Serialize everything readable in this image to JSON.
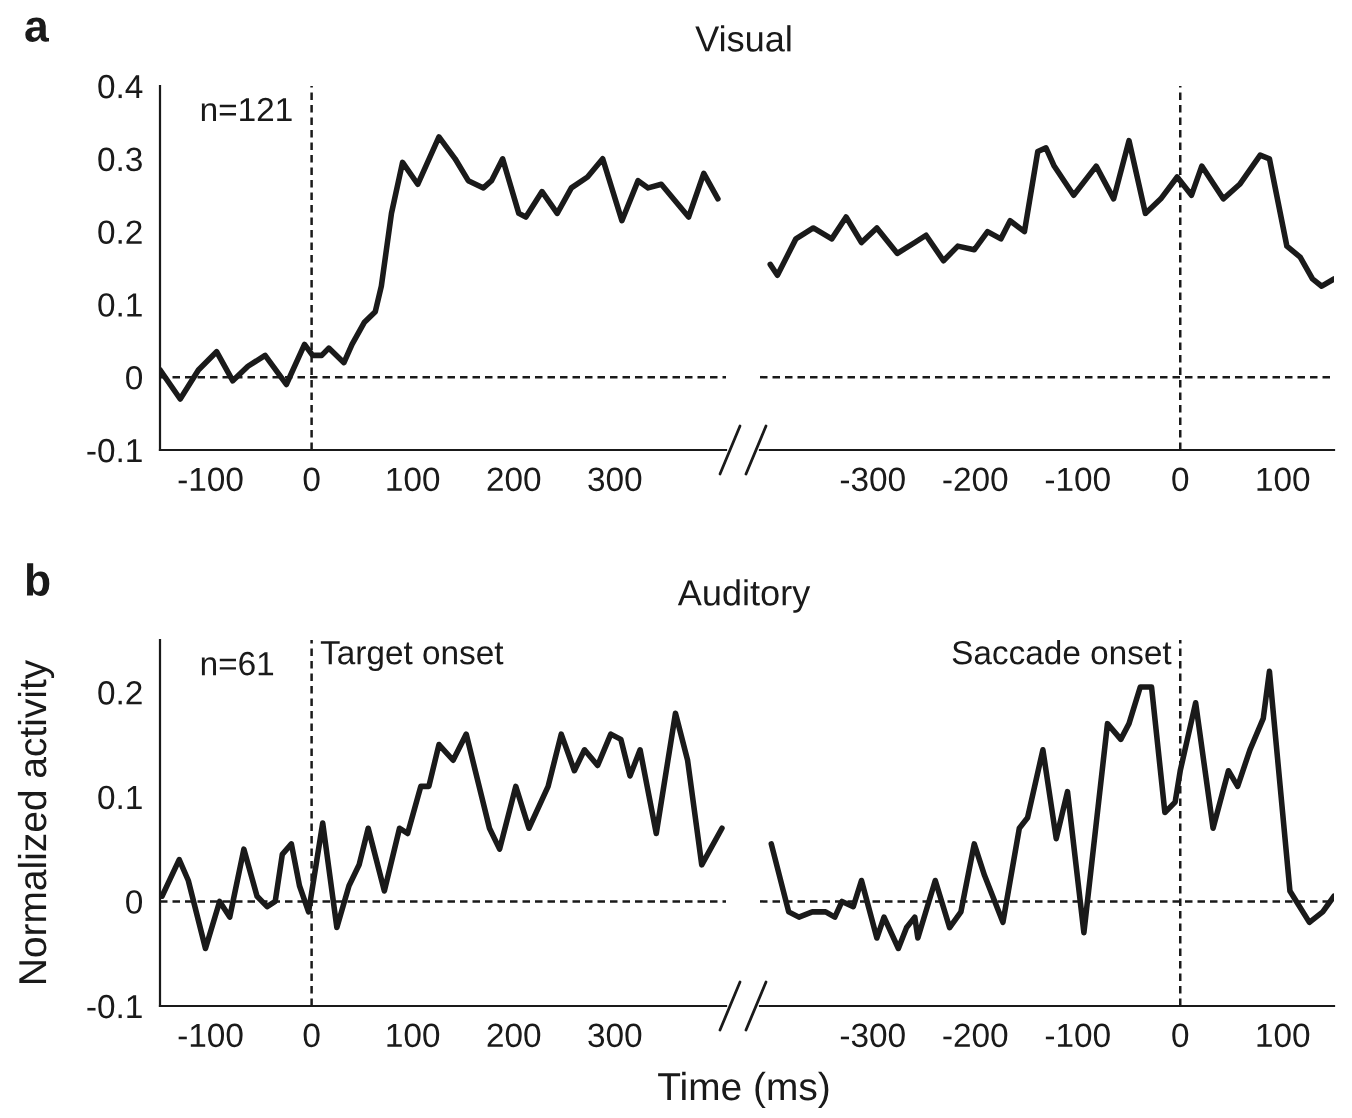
{
  "chart_data": [
    {
      "type": "line",
      "title": "Visual",
      "annotations": [
        "a",
        "n=121"
      ],
      "xlim": [
        -150,
        410
      ],
      "xticks": [
        -100,
        0,
        100,
        200,
        300
      ],
      "ylim": [
        -0.1,
        0.4
      ],
      "yticks": [
        -0.1,
        0,
        0.1,
        0.2,
        0.3,
        0.4
      ],
      "grid": false,
      "legend": false,
      "line_style": "solid",
      "ref_lines": [
        {
          "axis": "y",
          "value": 0,
          "line_style": "dashed"
        },
        {
          "axis": "x",
          "value": 0,
          "line_style": "dashed"
        }
      ],
      "series": [
        {
          "color": "#1a1a1a",
          "x": [
            -150,
            -130,
            -112,
            -94,
            -78,
            -63,
            -46,
            -25,
            -7,
            1,
            10,
            17,
            32,
            40,
            52,
            63,
            69,
            79,
            90,
            105,
            126,
            142,
            155,
            170,
            178,
            189,
            205,
            212,
            228,
            243,
            257,
            273,
            288,
            307,
            323,
            333,
            346,
            373,
            388,
            402
          ],
          "values": [
            0.01,
            -0.03,
            0.01,
            0.035,
            -0.005,
            0.015,
            0.03,
            -0.01,
            0.045,
            0.03,
            0.03,
            0.04,
            0.02,
            0.045,
            0.075,
            0.09,
            0.125,
            0.225,
            0.295,
            0.265,
            0.33,
            0.3,
            0.27,
            0.26,
            0.27,
            0.3,
            0.225,
            0.22,
            0.255,
            0.225,
            0.26,
            0.275,
            0.3,
            0.215,
            0.27,
            0.26,
            0.265,
            0.22,
            0.28,
            0.245
          ]
        }
      ]
    },
    {
      "type": "line",
      "xlim": [
        -410,
        150
      ],
      "xticks": [
        -300,
        -200,
        -100,
        0,
        100
      ],
      "ylim": [
        -0.1,
        0.4
      ],
      "tick_labels": "x",
      "grid": false,
      "legend": false,
      "line_style": "solid",
      "ref_lines": [
        {
          "axis": "y",
          "value": 0,
          "line_style": "dashed"
        },
        {
          "axis": "x",
          "value": 0,
          "line_style": "dashed"
        }
      ],
      "series": [
        {
          "color": "#1a1a1a",
          "x": [
            -400,
            -393,
            -375,
            -358,
            -340,
            -326,
            -311,
            -296,
            -276,
            -259,
            -248,
            -231,
            -217,
            -201,
            -188,
            -175,
            -166,
            -152,
            -139,
            -131,
            -123,
            -104,
            -82,
            -65,
            -50,
            -34,
            -19,
            -3,
            11,
            21,
            42,
            58,
            78,
            87,
            104,
            117,
            129,
            138,
            150
          ],
          "values": [
            0.155,
            0.14,
            0.19,
            0.205,
            0.19,
            0.22,
            0.185,
            0.205,
            0.17,
            0.185,
            0.195,
            0.16,
            0.18,
            0.175,
            0.2,
            0.19,
            0.215,
            0.2,
            0.31,
            0.315,
            0.29,
            0.25,
            0.29,
            0.245,
            0.325,
            0.225,
            0.245,
            0.275,
            0.25,
            0.29,
            0.245,
            0.265,
            0.305,
            0.3,
            0.18,
            0.165,
            0.135,
            0.125,
            0.135
          ]
        }
      ]
    },
    {
      "type": "line",
      "title": "Auditory",
      "ylabel": "Normalized activity",
      "annotations": [
        "b",
        "n=61"
      ],
      "xlim": [
        -150,
        410
      ],
      "xticks": [
        -100,
        0,
        100,
        200,
        300
      ],
      "ylim": [
        -0.1,
        0.25
      ],
      "yticks": [
        -0.1,
        0,
        0.1,
        0.2
      ],
      "grid": false,
      "legend": false,
      "line_style": "solid",
      "ref_lines": [
        {
          "axis": "y",
          "value": 0,
          "line_style": "dashed"
        },
        {
          "axis": "x",
          "value": 0,
          "label": "Target onset",
          "line_style": "dashed"
        }
      ],
      "series": [
        {
          "color": "#1a1a1a",
          "x": [
            -148,
            -131,
            -122,
            -105,
            -91,
            -81,
            -67,
            -54,
            -44,
            -36,
            -29,
            -20,
            -12,
            -3,
            11,
            25,
            37,
            47,
            56,
            72,
            87,
            95,
            108,
            116,
            126,
            140,
            153,
            176,
            186,
            202,
            215,
            234,
            247,
            260,
            270,
            283,
            296,
            306,
            315,
            325,
            341,
            360,
            372,
            386,
            406
          ],
          "values": [
            0.005,
            0.04,
            0.02,
            -0.045,
            0.0,
            -0.015,
            0.05,
            0.005,
            -0.005,
            0.0,
            0.045,
            0.055,
            0.015,
            -0.01,
            0.075,
            -0.025,
            0.015,
            0.035,
            0.07,
            0.01,
            0.07,
            0.065,
            0.11,
            0.11,
            0.15,
            0.135,
            0.16,
            0.07,
            0.05,
            0.11,
            0.07,
            0.11,
            0.16,
            0.125,
            0.145,
            0.13,
            0.16,
            0.155,
            0.12,
            0.145,
            0.065,
            0.18,
            0.135,
            0.035,
            0.07
          ]
        }
      ]
    },
    {
      "type": "line",
      "xlabel": "Time (ms)",
      "xlim": [
        -410,
        150
      ],
      "xticks": [
        -300,
        -200,
        -100,
        0,
        100
      ],
      "ylim": [
        -0.1,
        0.25
      ],
      "tick_labels": "x",
      "grid": false,
      "legend": false,
      "line_style": "solid",
      "ref_lines": [
        {
          "axis": "y",
          "value": 0,
          "line_style": "dashed"
        },
        {
          "axis": "x",
          "value": 0,
          "label": "Saccade onset",
          "line_style": "dashed"
        }
      ],
      "series": [
        {
          "color": "#1a1a1a",
          "x": [
            -399,
            -382,
            -372,
            -359,
            -346,
            -337,
            -330,
            -319,
            -311,
            -296,
            -289,
            -275,
            -267,
            -259,
            -256,
            -239,
            -225,
            -214,
            -201,
            -191,
            -173,
            -157,
            -149,
            -134,
            -121,
            -110,
            -94,
            -71,
            -58,
            -50,
            -39,
            -28,
            -15,
            -5,
            0,
            15,
            32,
            47,
            56,
            68,
            81,
            87,
            107,
            126,
            139,
            150
          ],
          "values": [
            0.055,
            -0.01,
            -0.015,
            -0.01,
            -0.01,
            -0.015,
            0.0,
            -0.005,
            0.02,
            -0.035,
            -0.015,
            -0.045,
            -0.025,
            -0.015,
            -0.035,
            0.02,
            -0.025,
            -0.01,
            0.055,
            0.025,
            -0.02,
            0.07,
            0.08,
            0.145,
            0.06,
            0.105,
            -0.03,
            0.17,
            0.155,
            0.17,
            0.205,
            0.205,
            0.085,
            0.095,
            0.125,
            0.19,
            0.07,
            0.125,
            0.11,
            0.145,
            0.175,
            0.22,
            0.01,
            -0.02,
            -0.01,
            0.005
          ]
        }
      ]
    }
  ]
}
